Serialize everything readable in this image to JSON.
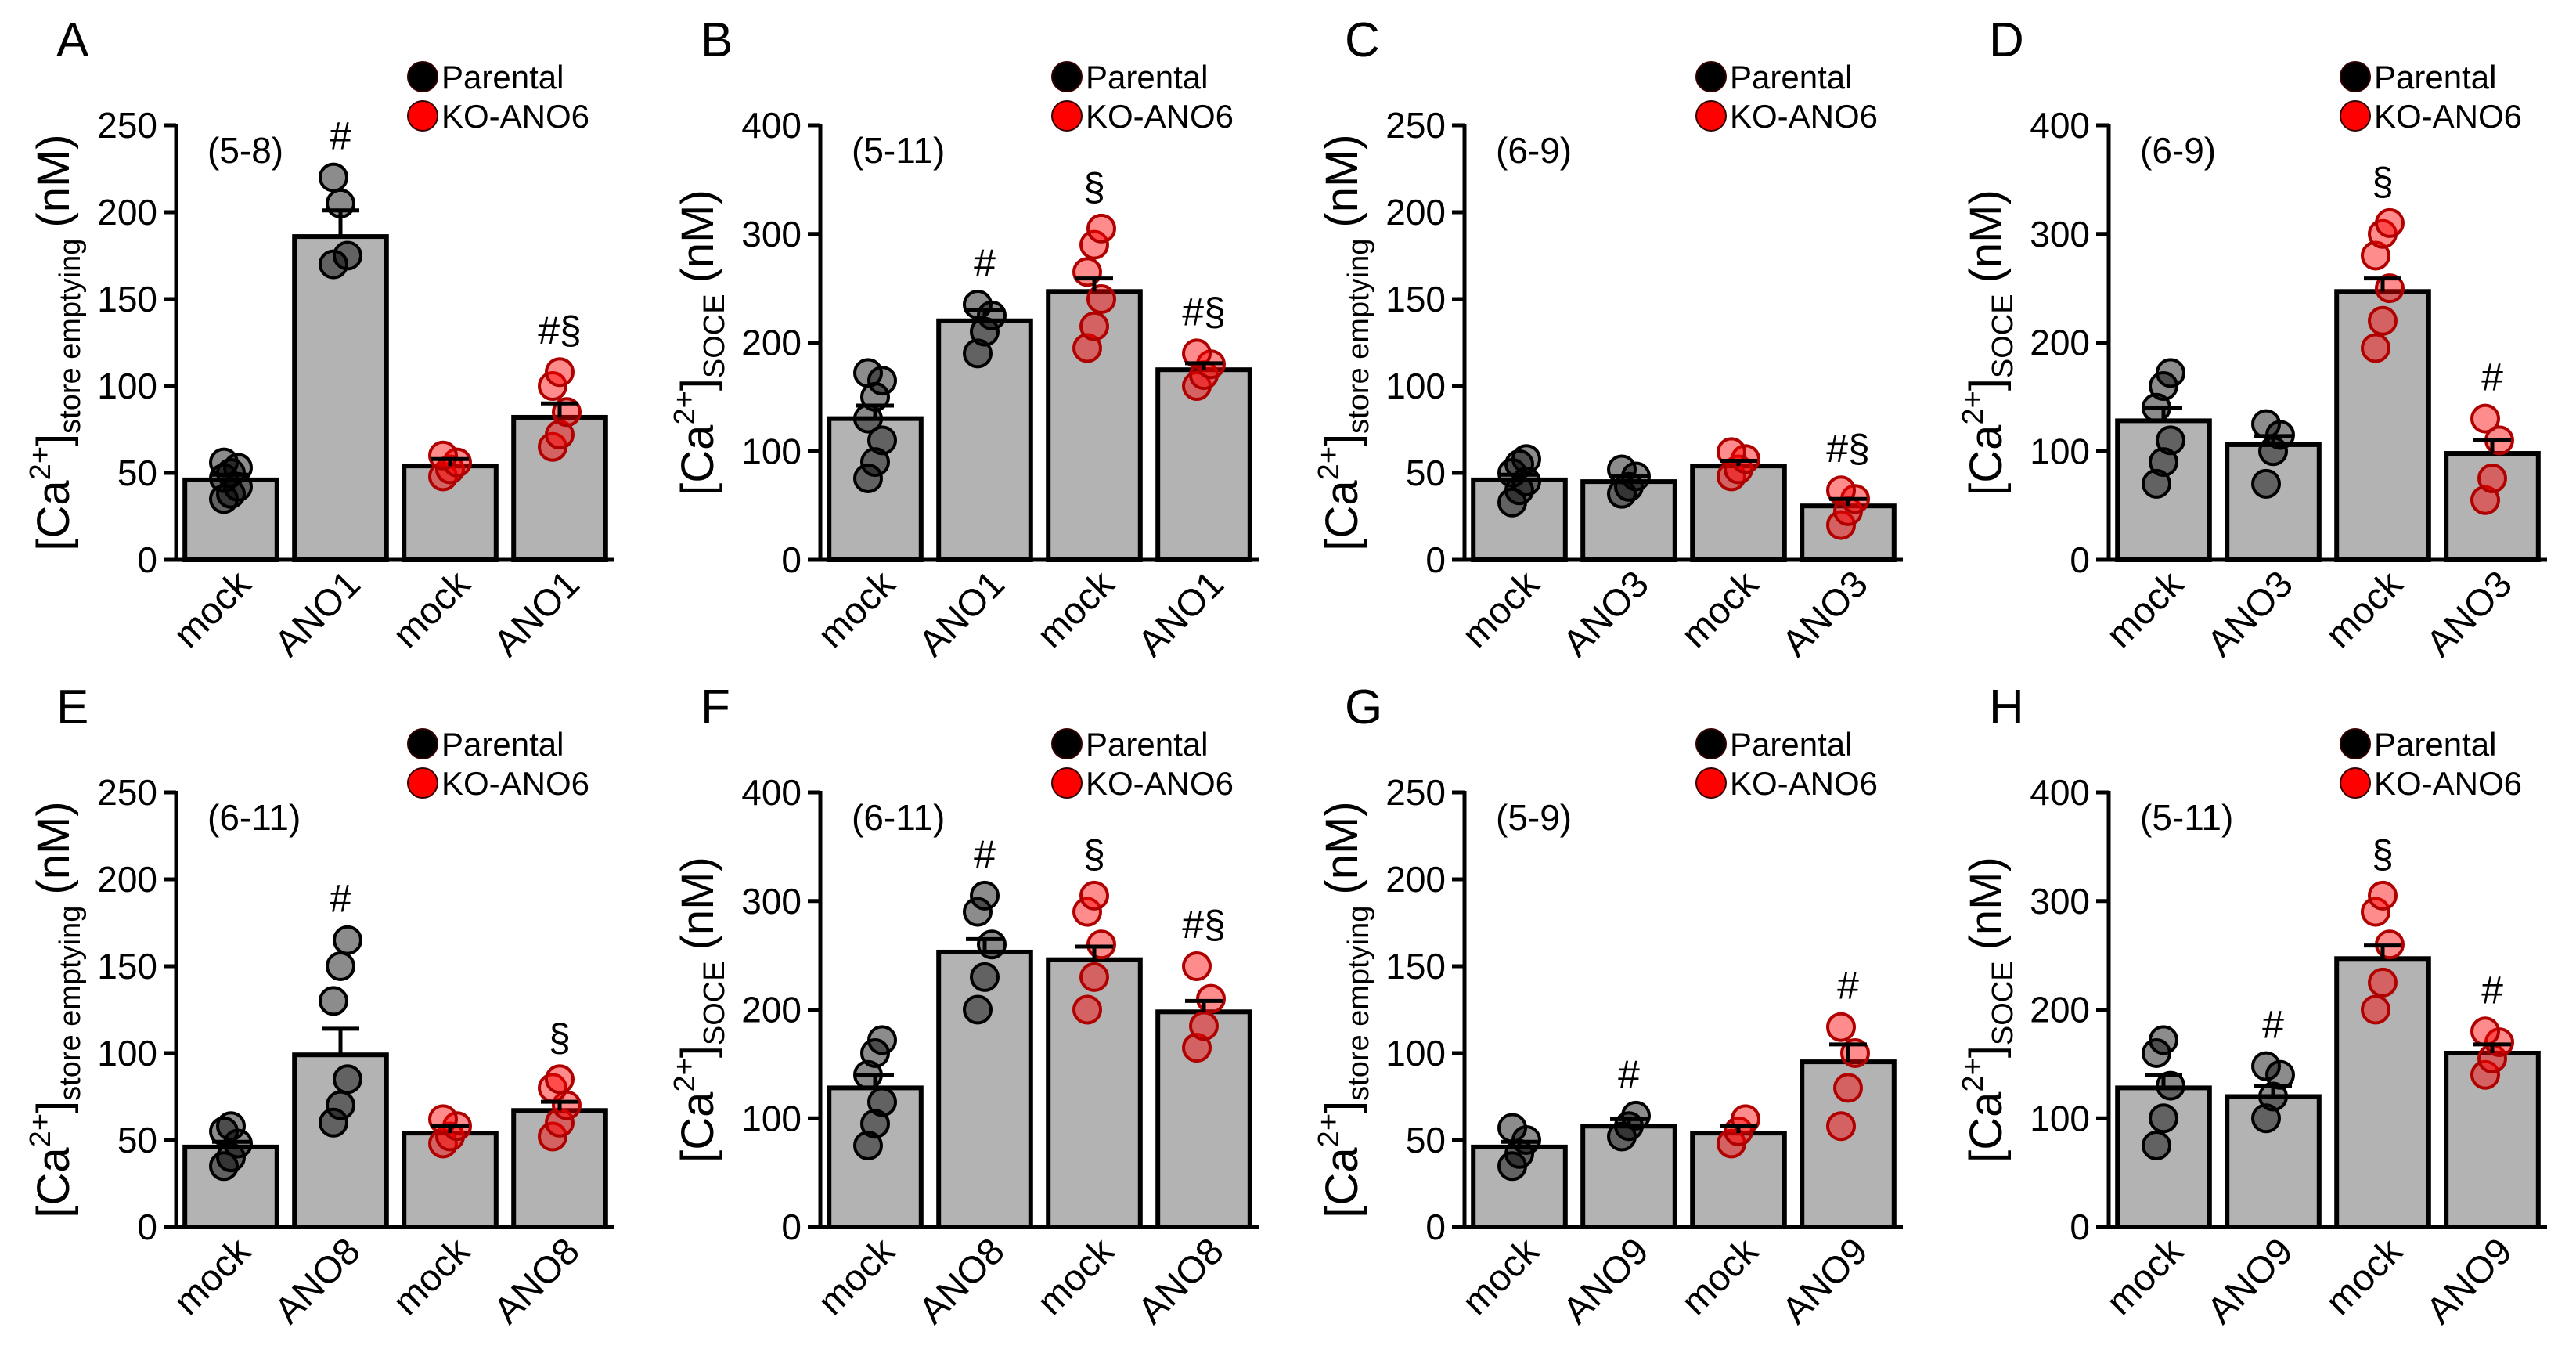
{
  "chart_data": [
    {
      "type": "bar",
      "panel": "A",
      "n_label": "(5-8)",
      "ylabel": {
        "base": "[Ca",
        "sup": "2+",
        "close": "]",
        "sub": "store emptying",
        "unit": "(nM)"
      },
      "categories": [
        "mock",
        "ANO1",
        "mock",
        "ANO1"
      ],
      "bar_color": "#b3b3b3",
      "ylim": [
        0,
        250
      ],
      "yticks": [
        0,
        50,
        100,
        150,
        200,
        250
      ],
      "annotations": [
        null,
        "#",
        null,
        "#§"
      ],
      "series": [
        {
          "name": "Parental",
          "color": "#000000",
          "values": [
            46,
            186,
            null,
            null
          ],
          "errors": [
            3,
            15,
            null,
            null
          ],
          "points": [
            [
              35,
              38,
              42,
              47,
              50,
              53,
              56
            ],
            [
              220,
              205,
              175,
              170
            ],
            null,
            null
          ]
        },
        {
          "name": "KO-ANO6",
          "color": "#ff0000",
          "values": [
            null,
            null,
            54,
            82
          ],
          "errors": [
            null,
            null,
            4,
            8
          ],
          "points": [
            null,
            null,
            [
              48,
              52,
              56,
              60
            ],
            [
              65,
              72,
              85,
              100,
              108
            ]
          ]
        }
      ]
    },
    {
      "type": "bar",
      "panel": "B",
      "n_label": "(5-11)",
      "ylabel": {
        "base": "[Ca",
        "sup": "2+",
        "close": "]",
        "sub": "SOCE",
        "unit": "(nM)"
      },
      "categories": [
        "mock",
        "ANO1",
        "mock",
        "ANO1"
      ],
      "bar_color": "#b3b3b3",
      "ylim": [
        0,
        400
      ],
      "yticks": [
        0,
        100,
        200,
        300,
        400
      ],
      "annotations": [
        null,
        "#",
        "§",
        "#§"
      ],
      "series": [
        {
          "name": "Parental",
          "color": "#000000",
          "values": [
            130,
            220,
            null,
            null
          ],
          "errors": [
            12,
            10,
            null,
            null
          ],
          "points": [
            [
              75,
              90,
              110,
              130,
              150,
              165,
              172
            ],
            [
              190,
              210,
              225,
              235
            ],
            null,
            null
          ]
        },
        {
          "name": "KO-ANO6",
          "color": "#ff0000",
          "values": [
            null,
            null,
            247,
            175
          ],
          "errors": [
            null,
            null,
            12,
            6
          ],
          "points": [
            null,
            null,
            [
              195,
              215,
              240,
              265,
              290,
              305
            ],
            [
              160,
              170,
              180,
              190
            ]
          ]
        }
      ]
    },
    {
      "type": "bar",
      "panel": "C",
      "n_label": "(6-9)",
      "ylabel": {
        "base": "[Ca",
        "sup": "2+",
        "close": "]",
        "sub": "store emptying",
        "unit": "(nM)"
      },
      "categories": [
        "mock",
        "ANO3",
        "mock",
        "ANO3"
      ],
      "bar_color": "#b3b3b3",
      "ylim": [
        0,
        250
      ],
      "yticks": [
        0,
        50,
        100,
        150,
        200,
        250
      ],
      "annotations": [
        null,
        null,
        null,
        "#§"
      ],
      "series": [
        {
          "name": "Parental",
          "color": "#000000",
          "values": [
            46,
            45,
            null,
            null
          ],
          "errors": [
            3,
            3,
            null,
            null
          ],
          "points": [
            [
              33,
              40,
              45,
              50,
              55,
              58
            ],
            [
              38,
              42,
              48,
              52
            ],
            null,
            null
          ]
        },
        {
          "name": "KO-ANO6",
          "color": "#ff0000",
          "values": [
            null,
            null,
            54,
            31
          ],
          "errors": [
            null,
            null,
            3,
            4
          ],
          "points": [
            null,
            null,
            [
              48,
              52,
              58,
              62
            ],
            [
              20,
              28,
              35,
              40
            ]
          ]
        }
      ]
    },
    {
      "type": "bar",
      "panel": "D",
      "n_label": "(6-9)",
      "ylabel": {
        "base": "[Ca",
        "sup": "2+",
        "close": "]",
        "sub": "SOCE",
        "unit": "(nM)"
      },
      "categories": [
        "mock",
        "ANO3",
        "mock",
        "ANO3"
      ],
      "bar_color": "#b3b3b3",
      "ylim": [
        0,
        400
      ],
      "yticks": [
        0,
        100,
        200,
        300,
        400
      ],
      "annotations": [
        null,
        null,
        "§",
        "#"
      ],
      "series": [
        {
          "name": "Parental",
          "color": "#000000",
          "values": [
            128,
            106,
            null,
            null
          ],
          "errors": [
            12,
            8,
            null,
            null
          ],
          "points": [
            [
              70,
              90,
              110,
              140,
              160,
              172
            ],
            [
              70,
              100,
              115,
              125
            ],
            null,
            null
          ]
        },
        {
          "name": "KO-ANO6",
          "color": "#ff0000",
          "values": [
            null,
            null,
            247,
            98
          ],
          "errors": [
            null,
            null,
            12,
            12
          ],
          "points": [
            null,
            null,
            [
              195,
              220,
              250,
              280,
              300,
              310
            ],
            [
              55,
              75,
              110,
              130
            ]
          ]
        }
      ]
    },
    {
      "type": "bar",
      "panel": "E",
      "n_label": "(6-11)",
      "ylabel": {
        "base": "[Ca",
        "sup": "2+",
        "close": "]",
        "sub": "store emptying",
        "unit": "(nM)"
      },
      "categories": [
        "mock",
        "ANO8",
        "mock",
        "ANO8"
      ],
      "bar_color": "#b3b3b3",
      "ylim": [
        0,
        250
      ],
      "yticks": [
        0,
        50,
        100,
        150,
        200,
        250
      ],
      "annotations": [
        null,
        "#",
        null,
        "§"
      ],
      "series": [
        {
          "name": "Parental",
          "color": "#000000",
          "values": [
            46,
            99,
            null,
            null
          ],
          "errors": [
            3,
            15,
            null,
            null
          ],
          "points": [
            [
              35,
              40,
              48,
              55,
              58
            ],
            [
              60,
              70,
              85,
              130,
              150,
              165
            ],
            null,
            null
          ]
        },
        {
          "name": "KO-ANO6",
          "color": "#ff0000",
          "values": [
            null,
            null,
            54,
            67
          ],
          "errors": [
            null,
            null,
            4,
            5
          ],
          "points": [
            null,
            null,
            [
              48,
              52,
              58,
              62
            ],
            [
              52,
              60,
              70,
              80,
              85
            ]
          ]
        }
      ]
    },
    {
      "type": "bar",
      "panel": "F",
      "n_label": "(6-11)",
      "ylabel": {
        "base": "[Ca",
        "sup": "2+",
        "close": "]",
        "sub": "SOCE",
        "unit": "(nM)"
      },
      "categories": [
        "mock",
        "ANO8",
        "mock",
        "ANO8"
      ],
      "bar_color": "#b3b3b3",
      "ylim": [
        0,
        400
      ],
      "yticks": [
        0,
        100,
        200,
        300,
        400
      ],
      "annotations": [
        null,
        "#",
        "§",
        "#§"
      ],
      "series": [
        {
          "name": "Parental",
          "color": "#000000",
          "values": [
            128,
            253,
            null,
            null
          ],
          "errors": [
            12,
            12,
            null,
            null
          ],
          "points": [
            [
              75,
              95,
              115,
              140,
              160,
              172
            ],
            [
              200,
              230,
              260,
              290,
              305
            ],
            null,
            null
          ]
        },
        {
          "name": "KO-ANO6",
          "color": "#ff0000",
          "values": [
            null,
            null,
            246,
            198
          ],
          "errors": [
            null,
            null,
            12,
            10
          ],
          "points": [
            null,
            null,
            [
              200,
              230,
              260,
              290,
              305
            ],
            [
              165,
              185,
              210,
              240
            ]
          ]
        }
      ]
    },
    {
      "type": "bar",
      "panel": "G",
      "n_label": "(5-9)",
      "ylabel": {
        "base": "[Ca",
        "sup": "2+",
        "close": "]",
        "sub": "store emptying",
        "unit": "(nM)"
      },
      "categories": [
        "mock",
        "ANO9",
        "mock",
        "ANO9"
      ],
      "bar_color": "#b3b3b3",
      "ylim": [
        0,
        250
      ],
      "yticks": [
        0,
        50,
        100,
        150,
        200,
        250
      ],
      "annotations": [
        null,
        "#",
        null,
        "#"
      ],
      "series": [
        {
          "name": "Parental",
          "color": "#000000",
          "values": [
            46,
            58,
            null,
            null
          ],
          "errors": [
            3,
            4,
            null,
            null
          ],
          "points": [
            [
              35,
              42,
              50,
              57
            ],
            [
              52,
              58,
              64
            ],
            null,
            null
          ]
        },
        {
          "name": "KO-ANO6",
          "color": "#ff0000",
          "values": [
            null,
            null,
            54,
            95
          ],
          "errors": [
            null,
            null,
            4,
            10
          ],
          "points": [
            null,
            null,
            [
              48,
              55,
              62
            ],
            [
              58,
              80,
              100,
              115
            ]
          ]
        }
      ]
    },
    {
      "type": "bar",
      "panel": "H",
      "n_label": "(5-11)",
      "ylabel": {
        "base": "[Ca",
        "sup": "2+",
        "close": "]",
        "sub": "SOCE",
        "unit": "(nM)"
      },
      "categories": [
        "mock",
        "ANO9",
        "mock",
        "ANO9"
      ],
      "bar_color": "#b3b3b3",
      "ylim": [
        0,
        400
      ],
      "yticks": [
        0,
        100,
        200,
        300,
        400
      ],
      "annotations": [
        null,
        "#",
        "§",
        "#"
      ],
      "series": [
        {
          "name": "Parental",
          "color": "#000000",
          "values": [
            128,
            120,
            null,
            null
          ],
          "errors": [
            12,
            10,
            null,
            null
          ],
          "points": [
            [
              75,
              100,
              130,
              160,
              172
            ],
            [
              100,
              120,
              140,
              148
            ],
            null,
            null
          ]
        },
        {
          "name": "KO-ANO6",
          "color": "#ff0000",
          "values": [
            null,
            null,
            247,
            160
          ],
          "errors": [
            null,
            null,
            12,
            8
          ],
          "points": [
            null,
            null,
            [
              200,
              225,
              260,
              290,
              305
            ],
            [
              140,
              155,
              170,
              180
            ]
          ]
        }
      ]
    }
  ]
}
